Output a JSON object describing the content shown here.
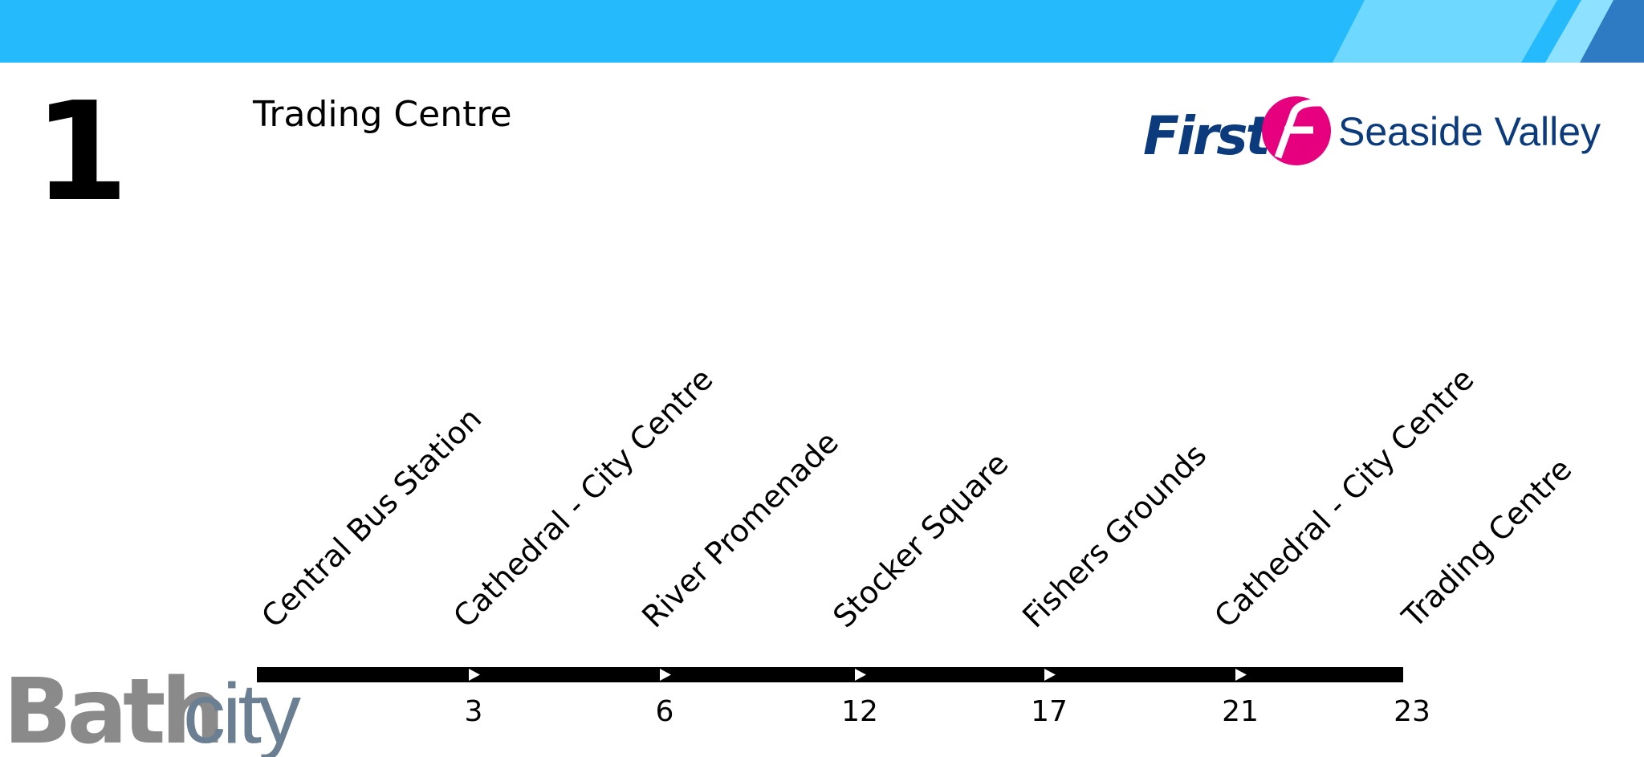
{
  "route": {
    "number": "1",
    "destination": "Trading Centre"
  },
  "operator": {
    "brand": "First",
    "region": "Seaside Valley"
  },
  "stops": [
    {
      "name": "Central Bus Station"
    },
    {
      "name": "Cathedral - City Centre",
      "time": "3"
    },
    {
      "name": "River Promenade",
      "time": "6"
    },
    {
      "name": "Stocker Square",
      "time": "12"
    },
    {
      "name": "Fishers Grounds",
      "time": "17"
    },
    {
      "name": "Cathedral - City Centre",
      "time": "21"
    },
    {
      "name": "Trading Centre",
      "time": "23"
    }
  ],
  "city_logo": {
    "part1": "Bath",
    "part2": "city"
  }
}
